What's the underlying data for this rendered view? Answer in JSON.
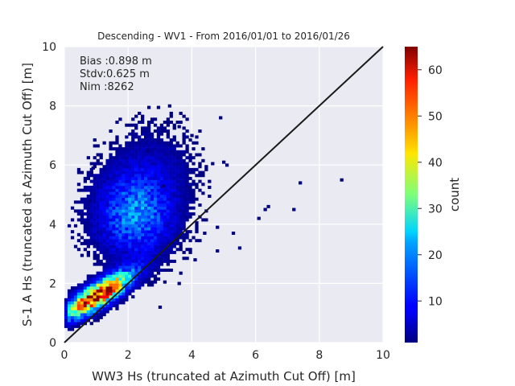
{
  "chart_data": {
    "type": "heatmap",
    "title": "Descending - WV1 - From 2016/01/01 to 2016/01/26",
    "xlabel": "WW3 Hs (truncated at Azimuth Cut Off) [m]",
    "ylabel": "S-1 A Hs (truncated at Azimuth Cut Off) [m]",
    "xlim": [
      0,
      10
    ],
    "ylim": [
      0,
      10
    ],
    "xticks": [
      "0",
      "2",
      "4",
      "6",
      "8",
      "10"
    ],
    "yticks": [
      "0",
      "2",
      "4",
      "6",
      "8",
      "10"
    ],
    "grid": true,
    "reference_line": {
      "x": [
        0,
        10
      ],
      "y": [
        0,
        10
      ]
    },
    "stats": {
      "bias": "Bias :0.898 m",
      "stdv": "Stdv:0.625 m",
      "nim": "Nim :8262"
    },
    "density": {
      "peak_x": 1.05,
      "peak_y": 1.6,
      "max_count": 65,
      "outliers": [
        [
          4.9,
          7.6
        ],
        [
          5.0,
          6.1
        ],
        [
          5.1,
          6.0
        ],
        [
          6.3,
          4.5
        ],
        [
          6.1,
          4.2
        ],
        [
          6.4,
          4.6
        ],
        [
          7.2,
          4.5
        ],
        [
          7.4,
          5.4
        ],
        [
          8.7,
          5.5
        ],
        [
          4.4,
          3.7
        ],
        [
          4.8,
          3.9
        ],
        [
          5.3,
          3.7
        ],
        [
          5.5,
          3.2
        ],
        [
          4.8,
          3.1
        ],
        [
          4.1,
          2.8
        ],
        [
          3.6,
          2.0
        ],
        [
          3.0,
          1.2
        ],
        [
          4.0,
          7.0
        ],
        [
          3.6,
          7.3
        ],
        [
          3.3,
          8.0
        ],
        [
          2.6,
          6.5
        ],
        [
          3.1,
          5.3
        ],
        [
          3.5,
          3.5
        ],
        [
          0.9,
          5.9
        ],
        [
          0.8,
          4.8
        ]
      ]
    },
    "colorbar": {
      "label": "count",
      "range": [
        1,
        65
      ],
      "ticks": [
        "10",
        "20",
        "30",
        "40",
        "50",
        "60"
      ],
      "colormap": "jet"
    }
  }
}
